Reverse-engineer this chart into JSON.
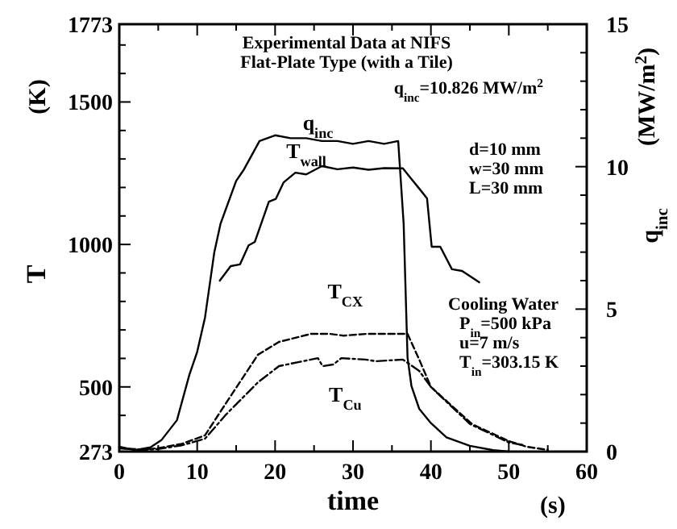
{
  "chart_data": {
    "type": "line",
    "title": "Experimental Data at NIFS",
    "subtitle": "Flat-Plate Type (with a Tile)",
    "xlabel": "time",
    "ylabel": "T",
    "y2label": "q$_{inc}$",
    "annotations": [
      "(s)",
      "(K)",
      "(MW/m$^{2}$)",
      "q$_{inc}$=10.826 MW/m$^{2}$",
      "d=10 mm",
      "w=30 mm",
      "L=30 mm",
      "Cooling Water",
      "P$_{in}$=500 kPa",
      "u=7 m/s",
      "T$_{in}$=303.15 K"
    ],
    "xlim": [
      0,
      60
    ],
    "xticks": [
      0,
      {
        "value": 5,
        "label": null
      },
      10,
      {
        "value": 15,
        "label": null
      },
      20,
      {
        "value": 25,
        "label": null
      },
      30,
      {
        "value": 35,
        "label": null
      },
      40,
      {
        "value": 45,
        "label": null
      },
      50,
      {
        "value": 55,
        "label": null
      },
      60
    ],
    "ylim": [
      273,
      1773
    ],
    "yticks": [
      273,
      {
        "value": 400,
        "label": null
      },
      500,
      {
        "value": 600,
        "label": null
      },
      {
        "value": 700,
        "label": null
      },
      {
        "value": 800,
        "label": null
      },
      {
        "value": 900,
        "label": null
      },
      1000,
      {
        "value": 1100,
        "label": null
      },
      {
        "value": 1200,
        "label": null
      },
      {
        "value": 1300,
        "label": null
      },
      {
        "value": 1400,
        "label": null
      },
      1500,
      {
        "value": 1600,
        "label": null
      },
      {
        "value": 1700,
        "label": null
      },
      1773
    ],
    "y2lim": [
      0,
      15
    ],
    "y2ticks": [
      0,
      {
        "value": 1,
        "label": null
      },
      {
        "value": 2,
        "label": null
      },
      {
        "value": 3,
        "label": null
      },
      {
        "value": 4,
        "label": null
      },
      5,
      {
        "value": 6,
        "label": null
      },
      {
        "value": 7,
        "label": null
      },
      {
        "value": 8,
        "label": null
      },
      {
        "value": 9,
        "label": null
      },
      10,
      {
        "value": 11,
        "label": null
      },
      {
        "value": 12,
        "label": null
      },
      {
        "value": 13,
        "label": null
      },
      {
        "value": 14,
        "label": null
      },
      15
    ],
    "grid": false,
    "marker": "none",
    "series": [
      {
        "name": "q$_{inc}$",
        "color": "#000000",
        "axis": "y2",
        "line_style": "solid",
        "x": [
          0,
          2,
          4,
          5.4,
          7.4,
          9,
          10,
          11,
          12.2,
          13,
          15,
          16,
          18,
          20,
          22,
          24,
          26,
          28,
          30,
          32,
          34,
          35.8,
          36.5,
          37,
          37.5,
          38.5,
          40,
          42,
          45,
          48,
          50
        ],
        "values": [
          0.17,
          0.05,
          0.15,
          0.4,
          1.1,
          2.7,
          3.5,
          4.7,
          7.0,
          8.0,
          9.5,
          9.9,
          10.9,
          11.1,
          11.0,
          11.0,
          10.9,
          10.9,
          10.8,
          10.9,
          10.8,
          10.9,
          8.0,
          3.3,
          2.3,
          1.5,
          1.0,
          0.5,
          0.2,
          0.05,
          0
        ]
      },
      {
        "name": "T$_{wall}$",
        "color": "#000000",
        "line_style": "solid",
        "x": [
          12.9,
          14.3,
          15.5,
          16.6,
          17.4,
          19.2,
          20.1,
          21.1,
          22.6,
          24,
          26,
          28,
          30,
          32,
          34,
          36.4,
          38.5,
          39.5,
          40.1,
          41.2,
          42.7,
          44,
          46.2
        ],
        "values": [
          873,
          924,
          930,
          997,
          1009,
          1150,
          1160,
          1218,
          1252,
          1246,
          1275,
          1264,
          1270,
          1262,
          1268,
          1267,
          1196,
          1162,
          992,
          992,
          913,
          907,
          867
        ]
      },
      {
        "name": "T$_{CX}$",
        "color": "#000000",
        "line_style": "dashed",
        "x": [
          0,
          3,
          5,
          8,
          11,
          13.7,
          17.8,
          20.5,
          24.6,
          27,
          28.8,
          31.7,
          37,
          38.5,
          40,
          45.3,
          50,
          52.3,
          55
        ],
        "values": [
          285,
          280,
          285,
          300,
          330,
          443,
          613,
          658,
          686,
          686,
          680,
          686,
          686,
          596,
          500,
          369,
          310,
          290,
          279
        ]
      },
      {
        "name": "T$_{Cu}$",
        "color": "#000000",
        "line_style": "dashdot",
        "x": [
          0,
          3,
          5,
          8,
          11,
          13.7,
          17.8,
          20.5,
          24.6,
          25.5,
          26.1,
          27.5,
          28.5,
          31.6,
          32.9,
          36.4,
          38.5,
          40,
          45,
          50,
          52
        ],
        "values": [
          285,
          278,
          282,
          295,
          318,
          403,
          516,
          573,
          596,
          601,
          573,
          579,
          601,
          596,
          590,
          596,
          556,
          500,
          370,
          305,
          295
        ]
      }
    ]
  }
}
